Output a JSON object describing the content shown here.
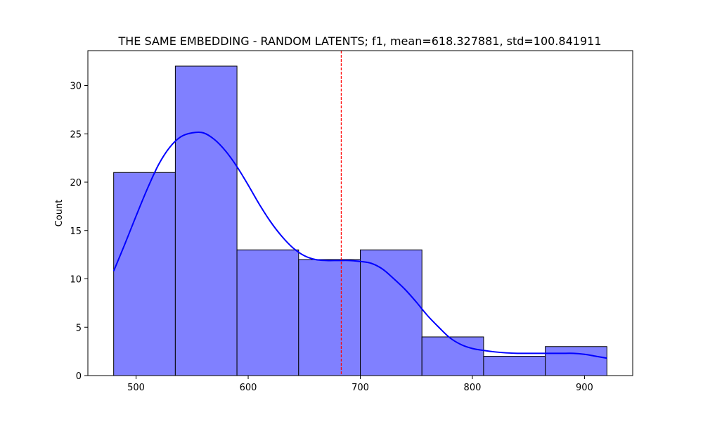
{
  "chart_data": {
    "type": "bar",
    "subtype": "histogram",
    "title": "THE SAME EMBEDDING - RANDOM LATENTS; f1, mean=618.327881, std=100.841911",
    "xlabel": "",
    "ylabel": "Count",
    "xlim": [
      457,
      943
    ],
    "ylim": [
      0,
      33.6
    ],
    "x_ticks": [
      500,
      600,
      700,
      800,
      900
    ],
    "y_ticks": [
      0,
      5,
      10,
      15,
      20,
      25,
      30
    ],
    "bins": [
      {
        "start": 480.0,
        "end": 535.0,
        "count": 21
      },
      {
        "start": 535.0,
        "end": 590.0,
        "count": 32
      },
      {
        "start": 590.0,
        "end": 645.0,
        "count": 13
      },
      {
        "start": 645.0,
        "end": 700.0,
        "count": 12
      },
      {
        "start": 700.0,
        "end": 755.0,
        "count": 13
      },
      {
        "start": 755.0,
        "end": 810.0,
        "count": 4
      },
      {
        "start": 810.0,
        "end": 865.0,
        "count": 2
      },
      {
        "start": 865.0,
        "end": 920.0,
        "count": 3
      }
    ],
    "kde": {
      "x": [
        480,
        490,
        500,
        510,
        520,
        530,
        540,
        550,
        560,
        570,
        580,
        590,
        600,
        610,
        620,
        630,
        640,
        650,
        660,
        670,
        680,
        690,
        700,
        710,
        720,
        730,
        740,
        750,
        760,
        770,
        780,
        790,
        800,
        810,
        820,
        830,
        840,
        850,
        860,
        870,
        880,
        890,
        900,
        910,
        920
      ],
      "y": [
        10.8,
        13.6,
        16.5,
        19.3,
        21.8,
        23.6,
        24.7,
        25.1,
        25.1,
        24.4,
        23.2,
        21.6,
        19.7,
        17.7,
        15.9,
        14.4,
        13.2,
        12.4,
        12.0,
        11.9,
        11.9,
        11.9,
        11.8,
        11.6,
        11.0,
        10.0,
        8.9,
        7.6,
        6.2,
        5.0,
        3.9,
        3.2,
        2.8,
        2.6,
        2.45,
        2.35,
        2.3,
        2.3,
        2.3,
        2.3,
        2.3,
        2.3,
        2.2,
        2.0,
        1.8
      ]
    },
    "vline": {
      "x": 683.0,
      "color": "#ff0000",
      "style": "dashed"
    },
    "colors": {
      "bar_fill": "#8080ff",
      "bar_edge": "#000000",
      "kde_line": "#0000ff"
    },
    "grid": false,
    "legend": "none"
  }
}
